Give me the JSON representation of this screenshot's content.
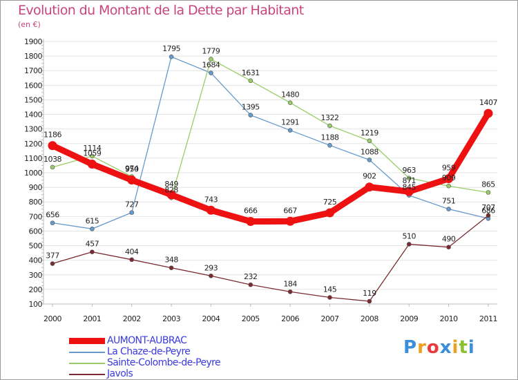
{
  "title": "Evolution du Montant de la Dette par Habitant",
  "unit": "(en €)",
  "logo": {
    "text": "Proxiti",
    "letter_colors": [
      "#3a8fd8",
      "#f0a020",
      "#e83a3a",
      "#3a8fd8",
      "#f0a020",
      "#8ac030",
      "#3a8fd8"
    ]
  },
  "chart_data": {
    "type": "line",
    "title": "Evolution du Montant de la Dette par Habitant",
    "subtitle": "(en €)",
    "xlabel": "",
    "ylabel": "",
    "x": [
      "2000",
      "2001",
      "2002",
      "2003",
      "2004",
      "2005",
      "2006",
      "2007",
      "2008",
      "2009",
      "2010",
      "2011"
    ],
    "ylim": [
      100,
      1900
    ],
    "yticks": [
      100,
      200,
      300,
      400,
      500,
      600,
      700,
      800,
      900,
      1000,
      1100,
      1200,
      1300,
      1400,
      1500,
      1600,
      1700,
      1800,
      1900
    ],
    "grid": "horizontal",
    "legend_position": "bottom",
    "series": [
      {
        "name": "La Chaze-de-Peyre",
        "color": "#6699cc",
        "values": [
          656,
          615,
          727,
          1795,
          1684,
          1395,
          1291,
          1188,
          1088,
          845,
          751,
          686
        ],
        "labels": [
          "656",
          "615",
          "727",
          "1795",
          "1684",
          "1395",
          "1291",
          "1188",
          "1088",
          "845",
          "751",
          "686"
        ]
      },
      {
        "name": "Sainte-Colombe-de-Peyre",
        "color": "#99cc66",
        "values": [
          1038,
          1114,
          974,
          828,
          1779,
          1631,
          1480,
          1322,
          1219,
          963,
          909,
          865
        ],
        "labels": [
          "1038",
          "1114",
          "974",
          "828",
          "1779",
          "1631",
          "1480",
          "1322",
          "1219",
          "963",
          "909",
          "865"
        ]
      },
      {
        "name": "Javols",
        "color": "#7a2a30",
        "values": [
          377,
          457,
          404,
          348,
          293,
          232,
          184,
          145,
          119,
          510,
          490,
          707
        ],
        "labels": [
          "377",
          "457",
          "404",
          "348",
          "293",
          "232",
          "184",
          "145",
          "119",
          "510",
          "490",
          "707"
        ]
      },
      {
        "name": "AUMONT-AUBRAC",
        "color": "#ee1111",
        "values": [
          1186,
          1059,
          950,
          849,
          743,
          666,
          667,
          725,
          902,
          871,
          959,
          1407
        ],
        "labels": [
          "1186",
          "1059",
          "950",
          "849",
          "743",
          "666",
          "667",
          "725",
          "902",
          "871",
          "959",
          "1407"
        ]
      }
    ],
    "legend": [
      "AUMONT-AUBRAC",
      "La Chaze-de-Peyre",
      "Sainte-Colombe-de-Peyre",
      "Javols"
    ]
  }
}
